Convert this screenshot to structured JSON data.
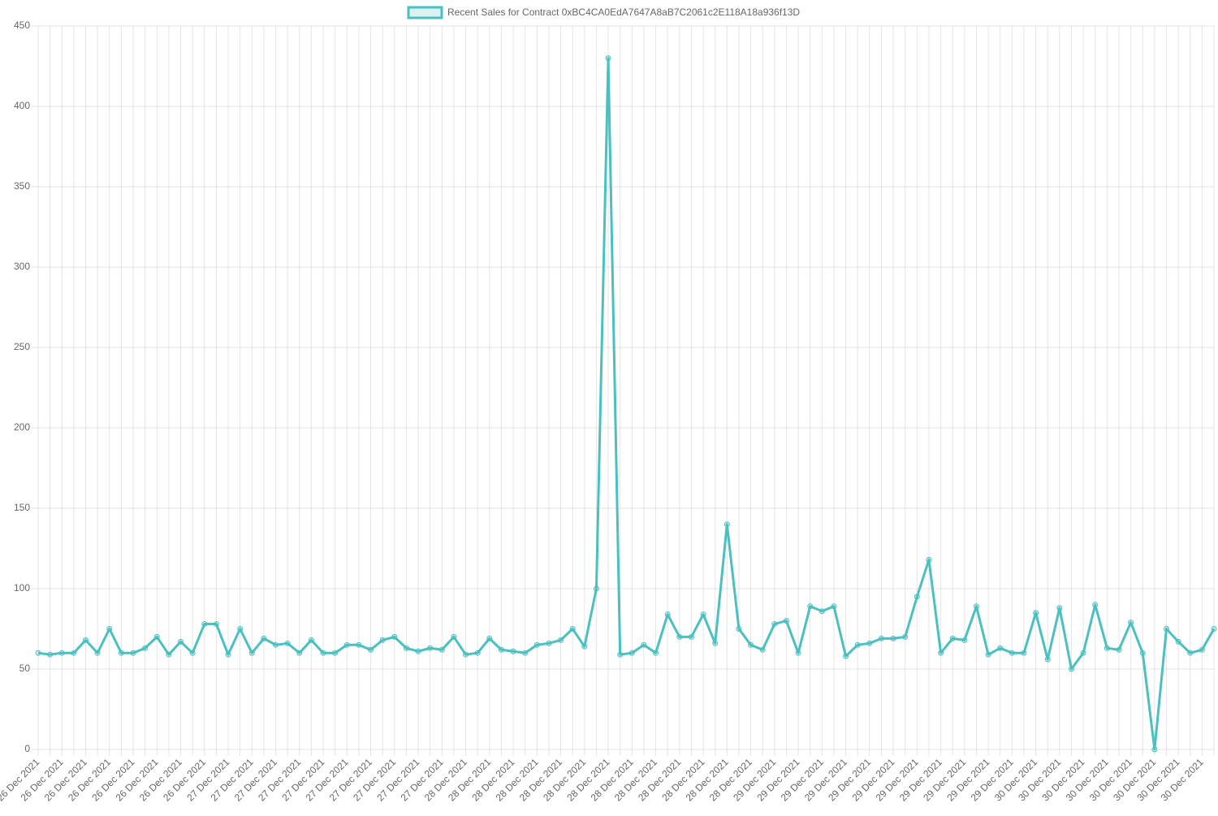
{
  "chart_data": {
    "type": "line",
    "categories": [
      "26 Dec 2021",
      null,
      "26 Dec 2021",
      null,
      "26 Dec 2021",
      null,
      "26 Dec 2021",
      null,
      "26 Dec 2021",
      null,
      "26 Dec 2021",
      null,
      "26 Dec 2021",
      null,
      "26 Dec 2021",
      null,
      "27 Dec 2021",
      null,
      "27 Dec 2021",
      null,
      "27 Dec 2021",
      null,
      "27 Dec 2021",
      null,
      "27 Dec 2021",
      null,
      "27 Dec 2021",
      null,
      "27 Dec 2021",
      null,
      "27 Dec 2021",
      null,
      "27 Dec 2021",
      null,
      "27 Dec 2021",
      null,
      "28 Dec 2021",
      null,
      "28 Dec 2021",
      null,
      "28 Dec 2021",
      null,
      "28 Dec 2021",
      null,
      "28 Dec 2021",
      null,
      "28 Dec 2021",
      null,
      "28 Dec 2021",
      null,
      "28 Dec 2021",
      null,
      "28 Dec 2021",
      null,
      "28 Dec 2021",
      null,
      "28 Dec 2021",
      null,
      "28 Dec 2021",
      null,
      "28 Dec 2021",
      null,
      "29 Dec 2021",
      null,
      "29 Dec 2021",
      null,
      "29 Dec 2021",
      null,
      "29 Dec 2021",
      null,
      "29 Dec 2021",
      null,
      "29 Dec 2021",
      null,
      "29 Dec 2021",
      null,
      "29 Dec 2021",
      null,
      "29 Dec 2021",
      null,
      "29 Dec 2021",
      null,
      "29 Dec 2021",
      null,
      "30 Dec 2021",
      null,
      "30 Dec 2021",
      null,
      "30 Dec 2021",
      null,
      "30 Dec 2021",
      null,
      "30 Dec 2021",
      null,
      "30 Dec 2021",
      null,
      "30 Dec 2021",
      null,
      "30 Dec 2021",
      null
    ],
    "series": [
      {
        "name": "Recent Sales for Contract 0xBC4CA0EdA7647A8aB7C2061c2E118A18a936f13D",
        "color": "#4bc0c0",
        "values": [
          60,
          59,
          60,
          60,
          68,
          60,
          75,
          60,
          60,
          63,
          70,
          59,
          67,
          60,
          78,
          78,
          59,
          75,
          60,
          69,
          65,
          66,
          60,
          68,
          60,
          60,
          65,
          65,
          62,
          68,
          70,
          63,
          61,
          63,
          62,
          70,
          59,
          60,
          69,
          62,
          61,
          60,
          65,
          66,
          68,
          75,
          64,
          100,
          430,
          59,
          60,
          65,
          60,
          84,
          70,
          70,
          84,
          66,
          140,
          75,
          65,
          62,
          78,
          80,
          60,
          89,
          86,
          89,
          58,
          65,
          66,
          69,
          69,
          70,
          95,
          118,
          60,
          69,
          68,
          89,
          59,
          63,
          60,
          60,
          85,
          56,
          88,
          50,
          60,
          90,
          63,
          62,
          79,
          60,
          0,
          75,
          67,
          60,
          62,
          75
        ]
      }
    ],
    "ylim": [
      0,
      450
    ],
    "yticks": [
      0,
      50,
      100,
      150,
      200,
      250,
      300,
      350,
      400,
      450
    ],
    "grid": true
  }
}
